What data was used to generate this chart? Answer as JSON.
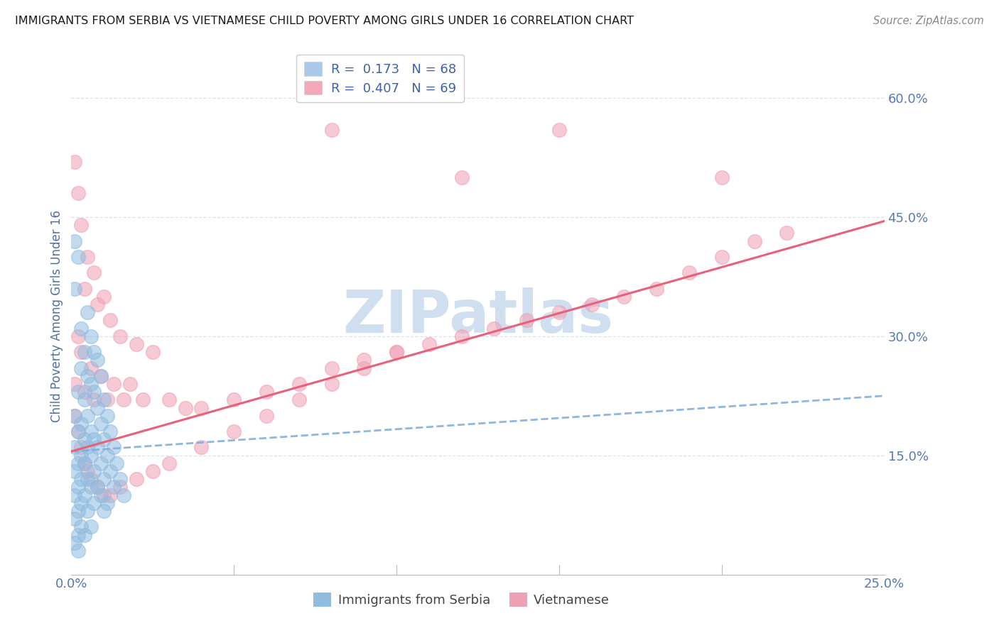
{
  "title": "IMMIGRANTS FROM SERBIA VS VIETNAMESE CHILD POVERTY AMONG GIRLS UNDER 16 CORRELATION CHART",
  "source": "Source: ZipAtlas.com",
  "ylabel": "Child Poverty Among Girls Under 16",
  "xlim": [
    0.0,
    0.25
  ],
  "ylim": [
    0.0,
    0.65
  ],
  "yticks": [
    0.0,
    0.15,
    0.3,
    0.45,
    0.6
  ],
  "ytick_labels": [
    "",
    "15.0%",
    "30.0%",
    "45.0%",
    "60.0%"
  ],
  "xticks": [
    0.0,
    0.05,
    0.1,
    0.15,
    0.2,
    0.25
  ],
  "xtick_labels": [
    "0.0%",
    "",
    "",
    "",
    "",
    "25.0%"
  ],
  "legend_entries": [
    {
      "label_R": "R = ",
      "label_Rval": " 0.173",
      "label_N": "  N = ",
      "label_Nval": "68",
      "color": "#aac8e8"
    },
    {
      "label_R": "R = ",
      "label_Rval": " 0.407",
      "label_N": "  N = ",
      "label_Nval": "69",
      "color": "#f4a8b8"
    }
  ],
  "serbia_color": "#90bce0",
  "vietnamese_color": "#f0a0b4",
  "serbia_line_color": "#7aabdb",
  "vietnamese_line_color": "#e8607a",
  "watermark_text": "ZIPatlas",
  "watermark_color": "#d0dff0",
  "title_color": "#1a1a1a",
  "axis_label_color": "#5070a0",
  "tick_color": "#5878b0",
  "legend_text_color": "#4060a8",
  "legend_N_color": "#c04000",
  "background_color": "#ffffff",
  "grid_color": "#d8e0ec",
  "serbia_scatter": [
    [
      0.001,
      0.42
    ],
    [
      0.002,
      0.4
    ],
    [
      0.001,
      0.36
    ],
    [
      0.005,
      0.33
    ],
    [
      0.003,
      0.31
    ],
    [
      0.006,
      0.3
    ],
    [
      0.007,
      0.28
    ],
    [
      0.004,
      0.28
    ],
    [
      0.008,
      0.27
    ],
    [
      0.003,
      0.26
    ],
    [
      0.005,
      0.25
    ],
    [
      0.009,
      0.25
    ],
    [
      0.006,
      0.24
    ],
    [
      0.002,
      0.23
    ],
    [
      0.007,
      0.23
    ],
    [
      0.01,
      0.22
    ],
    [
      0.004,
      0.22
    ],
    [
      0.008,
      0.21
    ],
    [
      0.001,
      0.2
    ],
    [
      0.005,
      0.2
    ],
    [
      0.011,
      0.2
    ],
    [
      0.003,
      0.19
    ],
    [
      0.009,
      0.19
    ],
    [
      0.006,
      0.18
    ],
    [
      0.002,
      0.18
    ],
    [
      0.012,
      0.18
    ],
    [
      0.004,
      0.17
    ],
    [
      0.007,
      0.17
    ],
    [
      0.01,
      0.17
    ],
    [
      0.001,
      0.16
    ],
    [
      0.005,
      0.16
    ],
    [
      0.008,
      0.16
    ],
    [
      0.013,
      0.16
    ],
    [
      0.003,
      0.15
    ],
    [
      0.006,
      0.15
    ],
    [
      0.011,
      0.15
    ],
    [
      0.002,
      0.14
    ],
    [
      0.004,
      0.14
    ],
    [
      0.009,
      0.14
    ],
    [
      0.014,
      0.14
    ],
    [
      0.001,
      0.13
    ],
    [
      0.007,
      0.13
    ],
    [
      0.012,
      0.13
    ],
    [
      0.003,
      0.12
    ],
    [
      0.005,
      0.12
    ],
    [
      0.01,
      0.12
    ],
    [
      0.015,
      0.12
    ],
    [
      0.002,
      0.11
    ],
    [
      0.006,
      0.11
    ],
    [
      0.008,
      0.11
    ],
    [
      0.013,
      0.11
    ],
    [
      0.001,
      0.1
    ],
    [
      0.004,
      0.1
    ],
    [
      0.009,
      0.1
    ],
    [
      0.016,
      0.1
    ],
    [
      0.003,
      0.09
    ],
    [
      0.007,
      0.09
    ],
    [
      0.011,
      0.09
    ],
    [
      0.002,
      0.08
    ],
    [
      0.005,
      0.08
    ],
    [
      0.01,
      0.08
    ],
    [
      0.001,
      0.07
    ],
    [
      0.003,
      0.06
    ],
    [
      0.006,
      0.06
    ],
    [
      0.002,
      0.05
    ],
    [
      0.004,
      0.05
    ],
    [
      0.001,
      0.04
    ],
    [
      0.002,
      0.03
    ]
  ],
  "vietnamese_scatter": [
    [
      0.001,
      0.52
    ],
    [
      0.002,
      0.48
    ],
    [
      0.003,
      0.44
    ],
    [
      0.005,
      0.4
    ],
    [
      0.007,
      0.38
    ],
    [
      0.01,
      0.35
    ],
    [
      0.004,
      0.36
    ],
    [
      0.008,
      0.34
    ],
    [
      0.012,
      0.32
    ],
    [
      0.015,
      0.3
    ],
    [
      0.02,
      0.29
    ],
    [
      0.025,
      0.28
    ],
    [
      0.002,
      0.3
    ],
    [
      0.003,
      0.28
    ],
    [
      0.006,
      0.26
    ],
    [
      0.009,
      0.25
    ],
    [
      0.013,
      0.24
    ],
    [
      0.018,
      0.24
    ],
    [
      0.001,
      0.24
    ],
    [
      0.004,
      0.23
    ],
    [
      0.007,
      0.22
    ],
    [
      0.011,
      0.22
    ],
    [
      0.016,
      0.22
    ],
    [
      0.022,
      0.22
    ],
    [
      0.03,
      0.22
    ],
    [
      0.035,
      0.21
    ],
    [
      0.04,
      0.21
    ],
    [
      0.05,
      0.22
    ],
    [
      0.06,
      0.23
    ],
    [
      0.07,
      0.24
    ],
    [
      0.08,
      0.26
    ],
    [
      0.09,
      0.27
    ],
    [
      0.1,
      0.28
    ],
    [
      0.11,
      0.29
    ],
    [
      0.12,
      0.3
    ],
    [
      0.13,
      0.31
    ],
    [
      0.14,
      0.32
    ],
    [
      0.15,
      0.33
    ],
    [
      0.16,
      0.34
    ],
    [
      0.17,
      0.35
    ],
    [
      0.18,
      0.36
    ],
    [
      0.19,
      0.38
    ],
    [
      0.2,
      0.4
    ],
    [
      0.21,
      0.42
    ],
    [
      0.22,
      0.43
    ],
    [
      0.001,
      0.2
    ],
    [
      0.002,
      0.18
    ],
    [
      0.003,
      0.16
    ],
    [
      0.004,
      0.14
    ],
    [
      0.005,
      0.13
    ],
    [
      0.006,
      0.12
    ],
    [
      0.008,
      0.11
    ],
    [
      0.01,
      0.1
    ],
    [
      0.012,
      0.1
    ],
    [
      0.015,
      0.11
    ],
    [
      0.02,
      0.12
    ],
    [
      0.025,
      0.13
    ],
    [
      0.03,
      0.14
    ],
    [
      0.04,
      0.16
    ],
    [
      0.05,
      0.18
    ],
    [
      0.06,
      0.2
    ],
    [
      0.07,
      0.22
    ],
    [
      0.08,
      0.24
    ],
    [
      0.09,
      0.26
    ],
    [
      0.1,
      0.28
    ],
    [
      0.2,
      0.5
    ],
    [
      0.15,
      0.56
    ],
    [
      0.12,
      0.5
    ],
    [
      0.08,
      0.56
    ]
  ],
  "serbia_line": {
    "x0": 0.0,
    "y0": 0.155,
    "x1": 0.25,
    "y1": 0.225
  },
  "vietnamese_line": {
    "x0": 0.0,
    "y0": 0.155,
    "x1": 0.25,
    "y1": 0.445
  }
}
